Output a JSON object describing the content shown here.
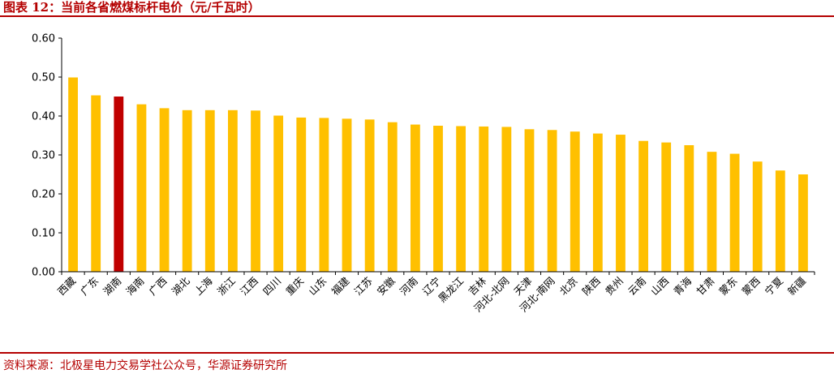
{
  "title": "图表 12：当前各省燃煤标杆电价（元/千瓦时）",
  "source": "资料来源：北极星电力交易学社公众号，华源证券研究所",
  "colors": {
    "bar": "#FFC000",
    "highlight": "#C00000",
    "accent_red": "#B40000"
  },
  "chart_data": {
    "type": "bar",
    "categories": [
      "西藏",
      "广东",
      "湖南",
      "海南",
      "广西",
      "湖北",
      "上海",
      "浙江",
      "江西",
      "四川",
      "重庆",
      "山东",
      "福建",
      "江苏",
      "安徽",
      "河南",
      "辽宁",
      "黑龙江",
      "吉林",
      "河北-北网",
      "天津",
      "河北-南网",
      "北京",
      "陕西",
      "贵州",
      "云南",
      "山西",
      "青海",
      "甘肃",
      "蒙东",
      "蒙西",
      "宁夏",
      "新疆"
    ],
    "values": [
      0.499,
      0.453,
      0.45,
      0.43,
      0.42,
      0.415,
      0.415,
      0.415,
      0.414,
      0.401,
      0.396,
      0.395,
      0.393,
      0.391,
      0.384,
      0.378,
      0.375,
      0.374,
      0.373,
      0.372,
      0.366,
      0.364,
      0.36,
      0.355,
      0.352,
      0.336,
      0.332,
      0.325,
      0.308,
      0.303,
      0.283,
      0.26,
      0.25
    ],
    "highlight_category": "湖南",
    "ylim": [
      0,
      0.6
    ],
    "yticks": [
      "0.00",
      "0.10",
      "0.20",
      "0.30",
      "0.40",
      "0.50",
      "0.60"
    ],
    "xlabel": "",
    "ylabel": "",
    "grid": false,
    "legend": "none"
  }
}
